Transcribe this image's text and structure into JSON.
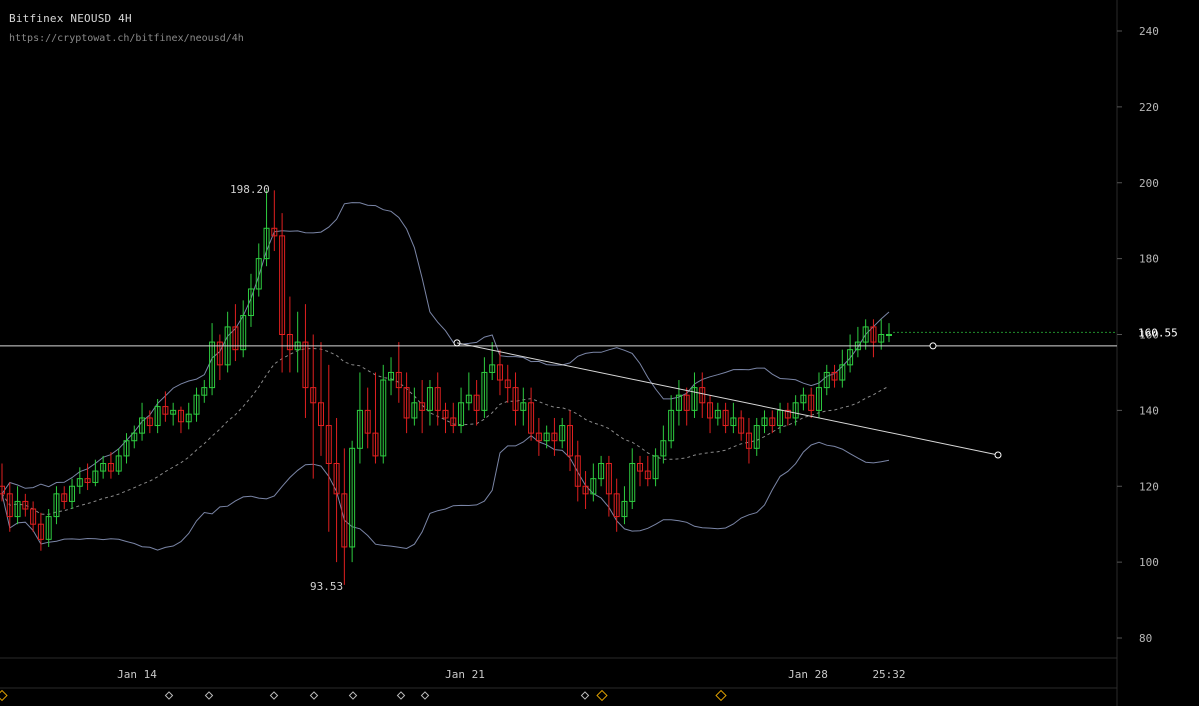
{
  "header": {
    "title": "Bitfinex NEOUSD 4H",
    "url": "https://cryptowat.ch/bitfinex/neousd/4h"
  },
  "chart_data": {
    "type": "candlestick",
    "ylim": [
      73,
      247
    ],
    "y_ticks": [
      240,
      220,
      200,
      180,
      160,
      140,
      120,
      100,
      80
    ],
    "x_ticks": [
      "Jan 14",
      "Jan 21",
      "Jan 28"
    ],
    "time_label": "25:32",
    "last_price": "160.55",
    "horizontal_line": 157,
    "high_label": "198.20",
    "low_label": "93.53",
    "colors": {
      "up": "#2ecc40",
      "down": "#e02020",
      "band": "#7a85a6",
      "ma": "#8a8a8a",
      "line": "#d8d8d8",
      "marker": "#e0a000"
    },
    "candles": [
      [
        120,
        118,
        126,
        116
      ],
      [
        118,
        112,
        121,
        108
      ],
      [
        112,
        116,
        120,
        110
      ],
      [
        116,
        114,
        118,
        112
      ],
      [
        114,
        110,
        116,
        108
      ],
      [
        110,
        106,
        113,
        103
      ],
      [
        106,
        112,
        114,
        104
      ],
      [
        112,
        118,
        120,
        110
      ],
      [
        118,
        116,
        120,
        114
      ],
      [
        116,
        120,
        122,
        114
      ],
      [
        120,
        122,
        125,
        118
      ],
      [
        122,
        121,
        126,
        119
      ],
      [
        121,
        124,
        127,
        120
      ],
      [
        124,
        126,
        128,
        122
      ],
      [
        126,
        124,
        129,
        122
      ],
      [
        124,
        128,
        130,
        123
      ],
      [
        128,
        132,
        134,
        126
      ],
      [
        132,
        134,
        136,
        130
      ],
      [
        134,
        138,
        142,
        132
      ],
      [
        138,
        136,
        140,
        134
      ],
      [
        136,
        141,
        143,
        134
      ],
      [
        141,
        139,
        145,
        137
      ],
      [
        139,
        140,
        142,
        136
      ],
      [
        140,
        137,
        141,
        134
      ],
      [
        137,
        139,
        142,
        135
      ],
      [
        139,
        144,
        146,
        137
      ],
      [
        144,
        146,
        148,
        142
      ],
      [
        146,
        158,
        163,
        144
      ],
      [
        158,
        152,
        160,
        148
      ],
      [
        152,
        162,
        166,
        150
      ],
      [
        162,
        156,
        168,
        153
      ],
      [
        156,
        165,
        169,
        154
      ],
      [
        165,
        172,
        176,
        162
      ],
      [
        172,
        180,
        184,
        170
      ],
      [
        180,
        188,
        198,
        178
      ],
      [
        188,
        186,
        198,
        182
      ],
      [
        186,
        160,
        192,
        150
      ],
      [
        160,
        156,
        170,
        150
      ],
      [
        156,
        158,
        166,
        150
      ],
      [
        158,
        146,
        168,
        138
      ],
      [
        146,
        142,
        160,
        122
      ],
      [
        142,
        136,
        158,
        128
      ],
      [
        136,
        126,
        152,
        108
      ],
      [
        126,
        118,
        138,
        100
      ],
      [
        118,
        104,
        130,
        94
      ],
      [
        104,
        130,
        132,
        100
      ],
      [
        130,
        140,
        150,
        126
      ],
      [
        140,
        134,
        146,
        130
      ],
      [
        134,
        128,
        150,
        126
      ],
      [
        128,
        148,
        152,
        126
      ],
      [
        148,
        150,
        154,
        144
      ],
      [
        150,
        146,
        158,
        142
      ],
      [
        146,
        138,
        150,
        134
      ],
      [
        138,
        142,
        146,
        136
      ],
      [
        142,
        140,
        148,
        134
      ],
      [
        140,
        146,
        148,
        136
      ],
      [
        146,
        140,
        150,
        136
      ],
      [
        140,
        138,
        142,
        134
      ],
      [
        138,
        136,
        142,
        134
      ],
      [
        136,
        142,
        146,
        134
      ],
      [
        142,
        144,
        150,
        140
      ],
      [
        144,
        140,
        148,
        136
      ],
      [
        140,
        150,
        154,
        138
      ],
      [
        150,
        152,
        158,
        148
      ],
      [
        152,
        148,
        156,
        144
      ],
      [
        148,
        146,
        152,
        142
      ],
      [
        146,
        140,
        150,
        136
      ],
      [
        140,
        142,
        146,
        136
      ],
      [
        142,
        134,
        146,
        132
      ],
      [
        134,
        132,
        138,
        128
      ],
      [
        132,
        134,
        136,
        130
      ],
      [
        134,
        132,
        138,
        128
      ],
      [
        132,
        136,
        138,
        130
      ],
      [
        136,
        128,
        140,
        124
      ],
      [
        128,
        120,
        132,
        116
      ],
      [
        120,
        118,
        124,
        114
      ],
      [
        118,
        122,
        126,
        116
      ],
      [
        122,
        126,
        128,
        120
      ],
      [
        126,
        118,
        128,
        112
      ],
      [
        118,
        112,
        122,
        108
      ],
      [
        112,
        116,
        120,
        110
      ],
      [
        116,
        126,
        130,
        114
      ],
      [
        126,
        124,
        128,
        120
      ],
      [
        124,
        122,
        128,
        120
      ],
      [
        122,
        128,
        130,
        120
      ],
      [
        128,
        132,
        136,
        126
      ],
      [
        132,
        140,
        144,
        130
      ],
      [
        140,
        144,
        148,
        136
      ],
      [
        144,
        140,
        146,
        136
      ],
      [
        140,
        146,
        150,
        138
      ],
      [
        146,
        142,
        150,
        138
      ],
      [
        142,
        138,
        144,
        134
      ],
      [
        138,
        140,
        142,
        136
      ],
      [
        140,
        136,
        142,
        134
      ],
      [
        136,
        138,
        142,
        134
      ],
      [
        138,
        134,
        140,
        132
      ],
      [
        134,
        130,
        138,
        126
      ],
      [
        130,
        136,
        138,
        128
      ],
      [
        136,
        138,
        140,
        134
      ],
      [
        138,
        136,
        140,
        134
      ],
      [
        136,
        140,
        142,
        134
      ],
      [
        140,
        138,
        142,
        136
      ],
      [
        138,
        142,
        144,
        136
      ],
      [
        142,
        144,
        146,
        140
      ],
      [
        144,
        140,
        146,
        138
      ],
      [
        140,
        146,
        150,
        138
      ],
      [
        146,
        150,
        152,
        144
      ],
      [
        150,
        148,
        152,
        146
      ],
      [
        148,
        152,
        156,
        146
      ],
      [
        152,
        156,
        160,
        150
      ],
      [
        156,
        158,
        162,
        154
      ],
      [
        158,
        162,
        164,
        156
      ],
      [
        162,
        158,
        164,
        154
      ],
      [
        158,
        160,
        164,
        156
      ],
      [
        160,
        160,
        163,
        158
      ]
    ]
  }
}
